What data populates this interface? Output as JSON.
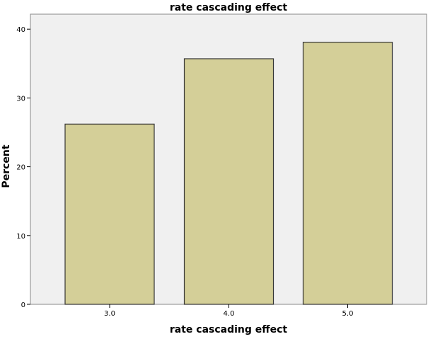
{
  "chart_data": {
    "type": "bar",
    "title": "rate cascading effect",
    "xlabel": "rate cascading effect",
    "ylabel": "Percent",
    "categories": [
      "3.0",
      "4.0",
      "5.0"
    ],
    "values": [
      26.2,
      35.7,
      38.1
    ],
    "ylim": [
      0,
      42
    ],
    "yticks": [
      "0",
      "10",
      "20",
      "30",
      "40"
    ],
    "grid": false,
    "legend": "none",
    "colors": {
      "bar": "#d4cf98",
      "plot_background": "#f0f0f0",
      "outline": "#333333"
    }
  }
}
